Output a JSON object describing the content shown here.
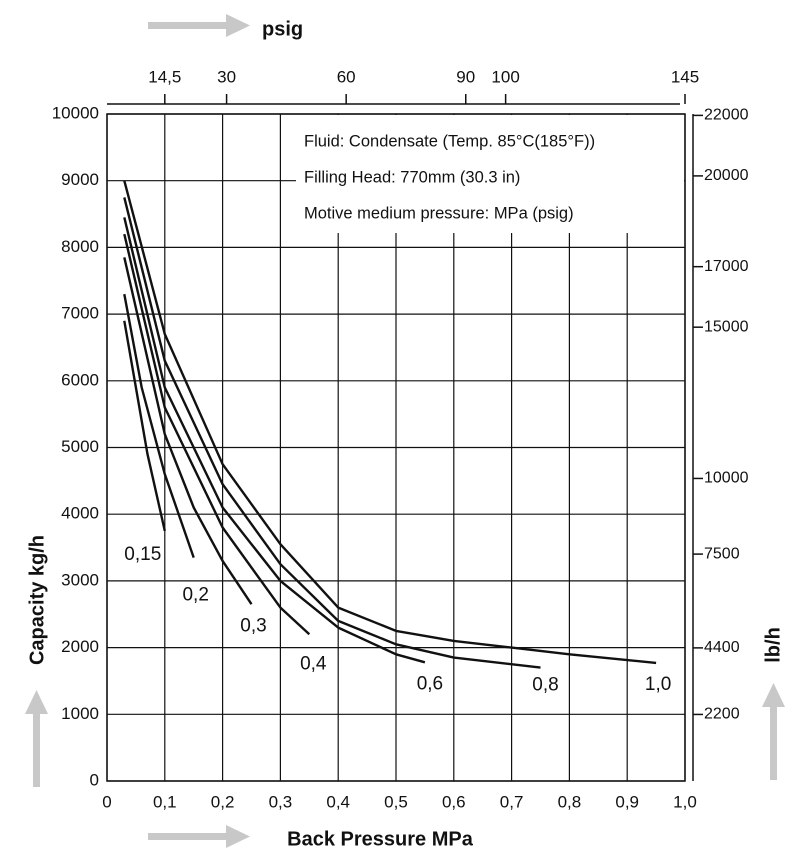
{
  "chart_data": {
    "type": "line",
    "annotations": [
      "Fluid: Condensate (Temp. 85°C(185°F))",
      "Filling Head: 770mm (30.3 in)",
      "Motive medium pressure: MPa (psig)"
    ],
    "xlabel": "Back Pressure MPa",
    "ylabel": "Capacity kg/h",
    "x2label": "psig",
    "y2label": "lb/h",
    "xlim": [
      0,
      1
    ],
    "xticks": [
      {
        "value": 0,
        "label": "0"
      },
      {
        "value": 0.1,
        "label": "0,1"
      },
      {
        "value": 0.2,
        "label": "0,2"
      },
      {
        "value": 0.3,
        "label": "0,3"
      },
      {
        "value": 0.4,
        "label": "0,4"
      },
      {
        "value": 0.5,
        "label": "0,5"
      },
      {
        "value": 0.6,
        "label": "0,6"
      },
      {
        "value": 0.7,
        "label": "0,7"
      },
      {
        "value": 0.8,
        "label": "0,8"
      },
      {
        "value": 0.9,
        "label": "0,9"
      },
      {
        "value": 1,
        "label": "1,0"
      }
    ],
    "ylim": [
      0,
      10000
    ],
    "yticks": [
      0,
      1000,
      2000,
      3000,
      4000,
      5000,
      6000,
      7000,
      8000,
      9000,
      10000
    ],
    "x2lim": [
      0,
      145
    ],
    "x2ticks": [
      {
        "value": 14.5,
        "label": "14,5"
      },
      30,
      60,
      90,
      100,
      145
    ],
    "y2lim": [
      0,
      22046
    ],
    "y2ticks": [
      2200,
      4400,
      7500,
      10000,
      15000,
      17000,
      20000,
      22000
    ],
    "grid": true,
    "color": "#111111",
    "series": [
      {
        "name": "0,15",
        "x": [
          0.03,
          0.05,
          0.07,
          0.1
        ],
        "values": [
          6900,
          5900,
          4900,
          3750
        ]
      },
      {
        "name": "0,2",
        "x": [
          0.03,
          0.06,
          0.1,
          0.15
        ],
        "values": [
          7300,
          5900,
          4600,
          3350
        ]
      },
      {
        "name": "0,3",
        "x": [
          0.03,
          0.1,
          0.15,
          0.2,
          0.25
        ],
        "values": [
          7850,
          5200,
          4100,
          3300,
          2650
        ]
      },
      {
        "name": "0,4",
        "x": [
          0.03,
          0.1,
          0.2,
          0.3,
          0.35
        ],
        "values": [
          8200,
          5600,
          3800,
          2600,
          2200
        ]
      },
      {
        "name": "0,6",
        "x": [
          0.03,
          0.1,
          0.2,
          0.3,
          0.4,
          0.5,
          0.55
        ],
        "values": [
          8450,
          5900,
          4100,
          3000,
          2300,
          1900,
          1780
        ]
      },
      {
        "name": "0,8",
        "x": [
          0.03,
          0.1,
          0.2,
          0.3,
          0.4,
          0.5,
          0.6,
          0.75
        ],
        "values": [
          8750,
          6300,
          4450,
          3250,
          2400,
          2050,
          1850,
          1700
        ]
      },
      {
        "name": "1,0",
        "x": [
          0.03,
          0.1,
          0.2,
          0.3,
          0.4,
          0.5,
          0.6,
          0.7,
          0.8,
          0.95
        ],
        "values": [
          9000,
          6700,
          4750,
          3550,
          2600,
          2250,
          2100,
          2000,
          1900,
          1770
        ]
      }
    ]
  }
}
